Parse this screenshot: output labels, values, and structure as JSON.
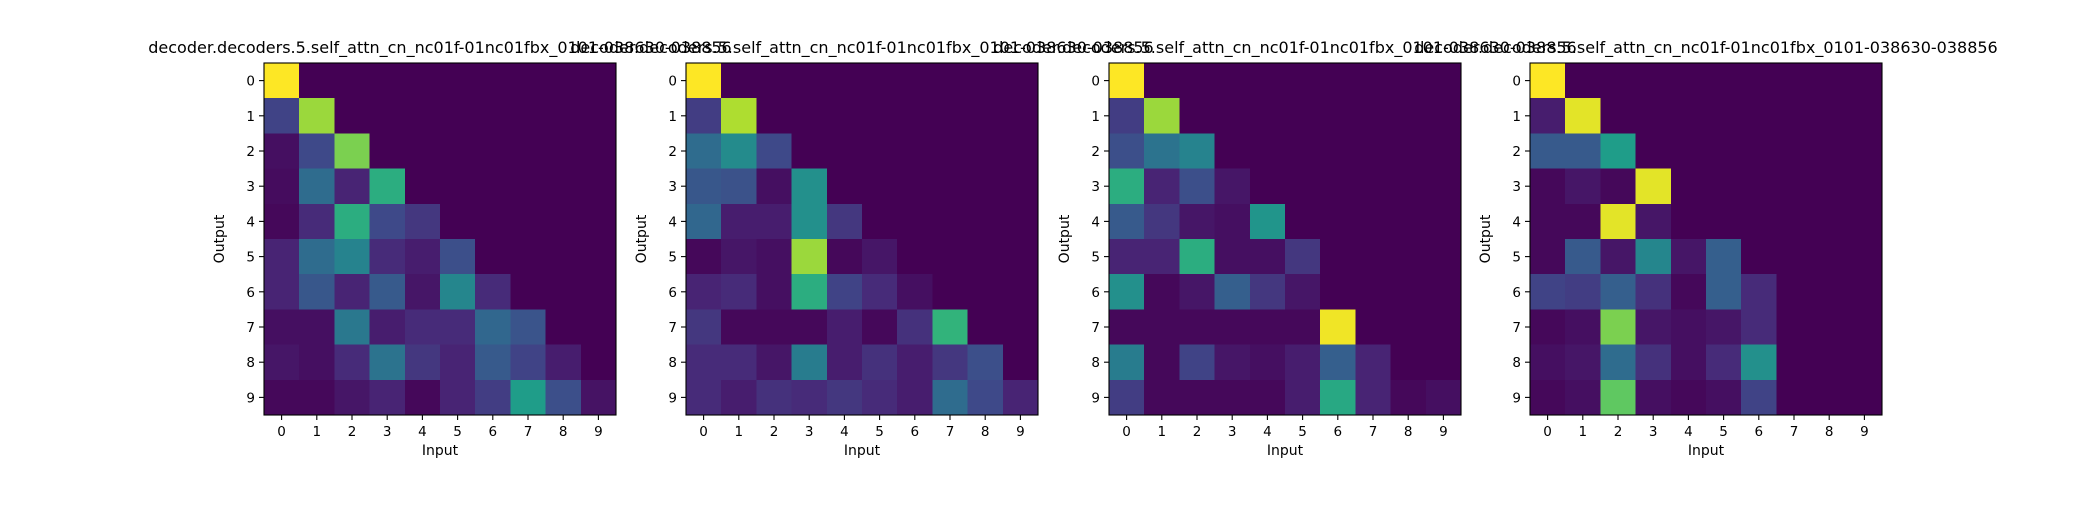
{
  "chart_data": [
    {
      "type": "heatmap",
      "title": "decoder.decoders.5.self_attn_cn_nc01f-01nc01fbx_0101-038630-038856",
      "xlabel": "Input",
      "ylabel": "Output",
      "x_ticks": [
        "0",
        "1",
        "2",
        "3",
        "4",
        "5",
        "6",
        "7",
        "8",
        "9"
      ],
      "y_ticks": [
        "0",
        "1",
        "2",
        "3",
        "4",
        "5",
        "6",
        "7",
        "8",
        "9"
      ],
      "colormap": "viridis",
      "values": [
        [
          1.0,
          0.0,
          0.0,
          0.0,
          0.0,
          0.0,
          0.0,
          0.0,
          0.0,
          0.0
        ],
        [
          0.2,
          0.85,
          0.0,
          0.0,
          0.0,
          0.0,
          0.0,
          0.0,
          0.0,
          0.0
        ],
        [
          0.04,
          0.22,
          0.8,
          0.0,
          0.0,
          0.0,
          0.0,
          0.0,
          0.0,
          0.0
        ],
        [
          0.03,
          0.35,
          0.1,
          0.62,
          0.0,
          0.0,
          0.0,
          0.0,
          0.0,
          0.0
        ],
        [
          0.02,
          0.12,
          0.62,
          0.22,
          0.16,
          0.0,
          0.0,
          0.0,
          0.0,
          0.0
        ],
        [
          0.1,
          0.35,
          0.45,
          0.12,
          0.08,
          0.24,
          0.0,
          0.0,
          0.0,
          0.0
        ],
        [
          0.1,
          0.27,
          0.1,
          0.28,
          0.06,
          0.46,
          0.12,
          0.0,
          0.0,
          0.0
        ],
        [
          0.04,
          0.04,
          0.4,
          0.08,
          0.12,
          0.12,
          0.33,
          0.26,
          0.0,
          0.0
        ],
        [
          0.06,
          0.04,
          0.12,
          0.38,
          0.16,
          0.1,
          0.28,
          0.2,
          0.08,
          0.0
        ],
        [
          0.02,
          0.02,
          0.06,
          0.1,
          0.02,
          0.1,
          0.18,
          0.55,
          0.24,
          0.05
        ]
      ]
    },
    {
      "type": "heatmap",
      "title": "decoder.decoders.5.self_attn_cn_nc01f-01nc01fbx_0101-038630-038856",
      "xlabel": "Input",
      "ylabel": "Output",
      "x_ticks": [
        "0",
        "1",
        "2",
        "3",
        "4",
        "5",
        "6",
        "7",
        "8",
        "9"
      ],
      "y_ticks": [
        "0",
        "1",
        "2",
        "3",
        "4",
        "5",
        "6",
        "7",
        "8",
        "9"
      ],
      "colormap": "viridis",
      "values": [
        [
          1.0,
          0.0,
          0.0,
          0.0,
          0.0,
          0.0,
          0.0,
          0.0,
          0.0,
          0.0
        ],
        [
          0.18,
          0.88,
          0.0,
          0.0,
          0.0,
          0.0,
          0.0,
          0.0,
          0.0,
          0.0
        ],
        [
          0.35,
          0.48,
          0.22,
          0.0,
          0.0,
          0.0,
          0.0,
          0.0,
          0.0,
          0.0
        ],
        [
          0.27,
          0.25,
          0.04,
          0.5,
          0.0,
          0.0,
          0.0,
          0.0,
          0.0,
          0.0
        ],
        [
          0.33,
          0.08,
          0.08,
          0.5,
          0.16,
          0.0,
          0.0,
          0.0,
          0.0,
          0.0
        ],
        [
          0.02,
          0.06,
          0.04,
          0.85,
          0.02,
          0.06,
          0.0,
          0.0,
          0.0,
          0.0
        ],
        [
          0.1,
          0.12,
          0.04,
          0.62,
          0.2,
          0.12,
          0.04,
          0.0,
          0.0,
          0.0
        ],
        [
          0.16,
          0.02,
          0.02,
          0.02,
          0.08,
          0.02,
          0.14,
          0.65,
          0.0,
          0.0
        ],
        [
          0.12,
          0.12,
          0.06,
          0.42,
          0.08,
          0.14,
          0.08,
          0.16,
          0.24,
          0.0
        ],
        [
          0.12,
          0.08,
          0.14,
          0.12,
          0.16,
          0.12,
          0.08,
          0.35,
          0.22,
          0.1
        ]
      ]
    },
    {
      "type": "heatmap",
      "title": "decoder.decoders.5.self_attn_cn_nc01f-01nc01fbx_0101-038630-038856",
      "xlabel": "Input",
      "ylabel": "Output",
      "x_ticks": [
        "0",
        "1",
        "2",
        "3",
        "4",
        "5",
        "6",
        "7",
        "8",
        "9"
      ],
      "y_ticks": [
        "0",
        "1",
        "2",
        "3",
        "4",
        "5",
        "6",
        "7",
        "8",
        "9"
      ],
      "colormap": "viridis",
      "values": [
        [
          1.0,
          0.0,
          0.0,
          0.0,
          0.0,
          0.0,
          0.0,
          0.0,
          0.0,
          0.0
        ],
        [
          0.18,
          0.85,
          0.0,
          0.0,
          0.0,
          0.0,
          0.0,
          0.0,
          0.0,
          0.0
        ],
        [
          0.24,
          0.38,
          0.45,
          0.0,
          0.0,
          0.0,
          0.0,
          0.0,
          0.0,
          0.0
        ],
        [
          0.62,
          0.1,
          0.24,
          0.06,
          0.0,
          0.0,
          0.0,
          0.0,
          0.0,
          0.0
        ],
        [
          0.28,
          0.16,
          0.06,
          0.04,
          0.52,
          0.0,
          0.0,
          0.0,
          0.0,
          0.0
        ],
        [
          0.1,
          0.1,
          0.62,
          0.04,
          0.04,
          0.16,
          0.0,
          0.0,
          0.0,
          0.0
        ],
        [
          0.5,
          0.02,
          0.06,
          0.3,
          0.16,
          0.06,
          0.0,
          0.0,
          0.0,
          0.0
        ],
        [
          0.02,
          0.02,
          0.02,
          0.02,
          0.02,
          0.02,
          0.98,
          0.0,
          0.0,
          0.0
        ],
        [
          0.42,
          0.02,
          0.2,
          0.06,
          0.04,
          0.08,
          0.3,
          0.1,
          0.0,
          0.0
        ],
        [
          0.18,
          0.02,
          0.02,
          0.02,
          0.02,
          0.08,
          0.6,
          0.1,
          0.02,
          0.04
        ]
      ]
    },
    {
      "type": "heatmap",
      "title": "decoder.decoders.5.self_attn_cn_nc01f-01nc01fbx_0101-038630-038856",
      "xlabel": "Input",
      "ylabel": "Output",
      "x_ticks": [
        "0",
        "1",
        "2",
        "3",
        "4",
        "5",
        "6",
        "7",
        "8",
        "9"
      ],
      "y_ticks": [
        "0",
        "1",
        "2",
        "3",
        "4",
        "5",
        "6",
        "7",
        "8",
        "9"
      ],
      "colormap": "viridis",
      "values": [
        [
          1.0,
          0.0,
          0.0,
          0.0,
          0.0,
          0.0,
          0.0,
          0.0,
          0.0,
          0.0
        ],
        [
          0.08,
          0.96,
          0.0,
          0.0,
          0.0,
          0.0,
          0.0,
          0.0,
          0.0,
          0.0
        ],
        [
          0.28,
          0.28,
          0.55,
          0.0,
          0.0,
          0.0,
          0.0,
          0.0,
          0.0,
          0.0
        ],
        [
          0.02,
          0.06,
          0.02,
          0.96,
          0.0,
          0.0,
          0.0,
          0.0,
          0.0,
          0.0
        ],
        [
          0.02,
          0.02,
          0.96,
          0.06,
          0.0,
          0.0,
          0.0,
          0.0,
          0.0,
          0.0
        ],
        [
          0.02,
          0.28,
          0.06,
          0.46,
          0.06,
          0.3,
          0.0,
          0.0,
          0.0,
          0.0
        ],
        [
          0.2,
          0.18,
          0.3,
          0.14,
          0.02,
          0.3,
          0.12,
          0.0,
          0.0,
          0.0
        ],
        [
          0.02,
          0.04,
          0.8,
          0.06,
          0.04,
          0.06,
          0.12,
          0.0,
          0.0,
          0.0
        ],
        [
          0.04,
          0.06,
          0.35,
          0.14,
          0.04,
          0.12,
          0.5,
          0.0,
          0.0,
          0.0
        ],
        [
          0.02,
          0.04,
          0.75,
          0.04,
          0.02,
          0.04,
          0.2,
          0.0,
          0.0,
          0.0
        ]
      ]
    }
  ]
}
